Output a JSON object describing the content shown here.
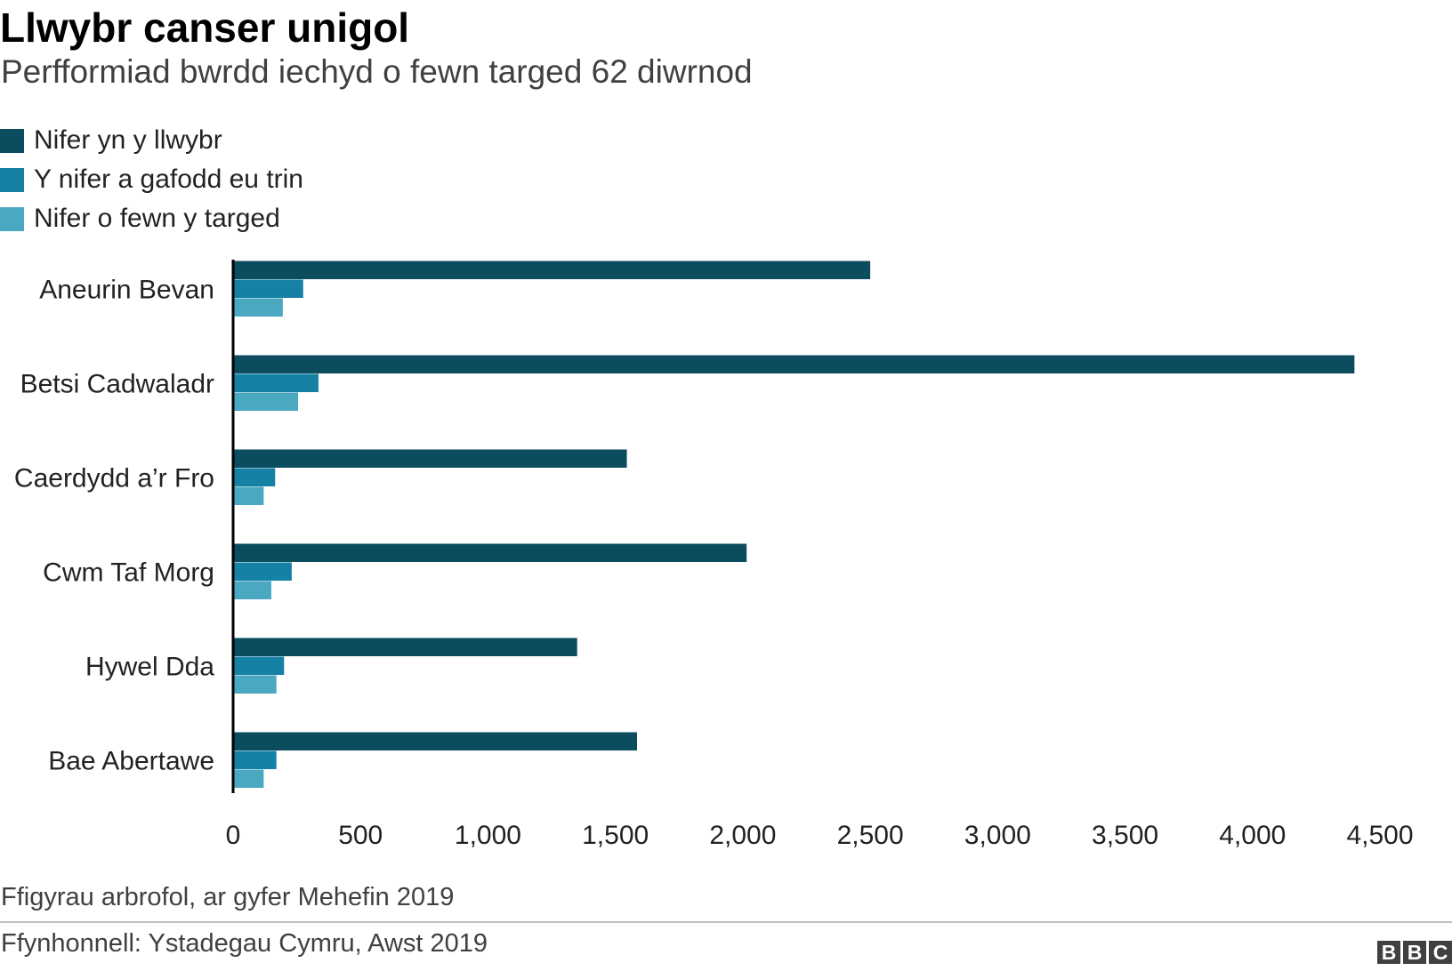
{
  "header": {
    "title": "Llwybr canser unigol",
    "subtitle": "Perfformiad bwrdd iechyd o fewn targed 62 diwrnod"
  },
  "footer": {
    "note": "Ffigyrau arbrofol, ar gyfer Mehefin 2019",
    "source": "Ffynhonnell: Ystadegau Cymru, Awst 2019",
    "logo_letters": [
      "B",
      "B",
      "C"
    ]
  },
  "chart_data": {
    "type": "bar",
    "orientation": "horizontal",
    "title": "Llwybr canser unigol",
    "subtitle": "Perfformiad bwrdd iechyd o fewn targed 62 diwrnod",
    "categories": [
      "Aneurin Bevan",
      "Betsi Cadwaladr",
      "Caerdydd a’r Fro",
      "Cwm Taf Morg",
      "Hywel Dda",
      "Bae Abertawe"
    ],
    "series": [
      {
        "name": "Nifer yn y llwybr",
        "color": "#0b4c5f",
        "values": [
          2500,
          4400,
          1545,
          2015,
          1350,
          1585
        ]
      },
      {
        "name": "Y nifer a gafodd eu trin",
        "color": "#1481a5",
        "values": [
          275,
          335,
          165,
          230,
          200,
          170
        ]
      },
      {
        "name": "Nifer o fewn y targed",
        "color": "#4aa8c1",
        "values": [
          195,
          255,
          120,
          150,
          170,
          120
        ]
      }
    ],
    "xlim": [
      0,
      4500
    ],
    "x_ticks": [
      0,
      500,
      1000,
      1500,
      2000,
      2500,
      3000,
      3500,
      4000,
      4500
    ],
    "x_tick_labels": [
      "0",
      "500",
      "1,000",
      "1,500",
      "2,000",
      "2,500",
      "3,000",
      "3,500",
      "4,000",
      "4,500"
    ],
    "legend": "top-left",
    "grid": false
  }
}
